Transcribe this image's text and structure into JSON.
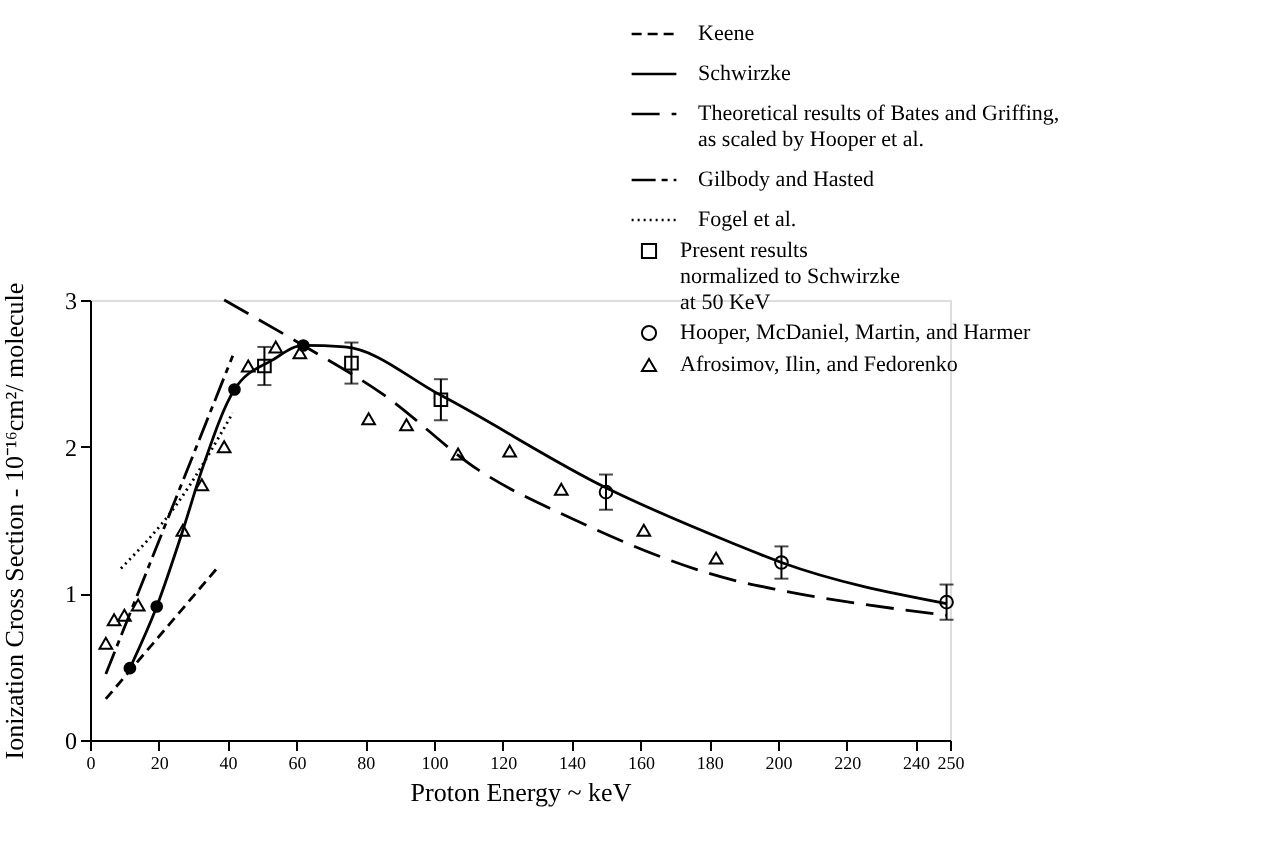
{
  "chart_data": {
    "type": "line",
    "xlabel": "Proton Energy ~ keV",
    "ylabel": "Ionization Cross Section - 10⁻¹⁶cm²/ molecule",
    "xlim": [
      0,
      250
    ],
    "xticks": [
      0,
      20,
      40,
      60,
      80,
      100,
      120,
      140,
      160,
      180,
      200,
      220,
      240,
      250
    ],
    "ylim": [
      0,
      3
    ],
    "yticks": [
      0,
      1,
      2,
      3
    ],
    "grid": false,
    "legend": "top right",
    "series": [
      {
        "type": "line",
        "name": "Keene",
        "color": "#000000",
        "line_style": "dashed",
        "x": [
          4.6,
          36.9
        ],
        "values": [
          0.28,
          1.17
        ]
      },
      {
        "type": "line",
        "name": "Schwirzke",
        "color": "#000000",
        "line_style": "solid",
        "x": [
          11.6,
          19.4,
          27,
          32.5,
          42,
          53,
          62,
          74,
          102,
          150,
          187,
          201,
          249
        ],
        "values": [
          0.49,
          0.91,
          1.43,
          1.84,
          2.39,
          2.59,
          2.69,
          2.68,
          2.35,
          1.72,
          1.34,
          1.21,
          0.93
        ]
      },
      {
        "type": "scatter",
        "name": "Present results\nnormalized to Schwirzke\nat 50 KeV",
        "color": "#000000",
        "marker": "square",
        "x": [
          50.7,
          76,
          102
        ],
        "values": [
          2.55,
          2.57,
          2.32
        ],
        "errors": [
          0.13,
          0.14,
          0.14
        ]
      },
      {
        "type": "scatter",
        "name": "Hooper, McDaniel, Martin, and Harmer",
        "color": "#000000",
        "marker": "circle",
        "x": [
          150,
          201,
          249
        ],
        "values": [
          1.69,
          1.21,
          0.94
        ],
        "errors": [
          0.12,
          0.11,
          0.12
        ]
      },
      {
        "type": "line",
        "name": "Theoretical results of Bates and Griffing,\nas scaled by Hooper et  al.",
        "color": "#000000",
        "line_style": "dashed",
        "x": [
          39,
          62,
          85,
          113,
          141,
          187,
          201,
          249
        ],
        "values": [
          3.0,
          2.69,
          2.36,
          1.84,
          1.5,
          1.09,
          1.02,
          0.85
        ]
      },
      {
        "type": "scatter",
        "name": "Afrosimov, Ilin, and Fedorenko",
        "color": "#000000",
        "marker": "triangle",
        "x": [
          4.6,
          7,
          10,
          14,
          27,
          32.5,
          39,
          46,
          54,
          61,
          81,
          92,
          107,
          122,
          137,
          161,
          182
        ],
        "values": [
          0.66,
          0.82,
          0.85,
          0.92,
          1.43,
          1.74,
          2.0,
          2.55,
          2.68,
          2.64,
          2.19,
          2.15,
          1.95,
          1.97,
          1.71,
          1.43,
          1.24
        ]
      },
      {
        "type": "line",
        "name": "Gilbody and Hasted",
        "color": "#000000",
        "line_style": "dashed",
        "x": [
          4.6,
          41.5
        ],
        "values": [
          0.45,
          2.62
        ]
      },
      {
        "type": "line",
        "name": "Fogel  et al.",
        "color": "#000000",
        "line_style": "dotted",
        "x": [
          9,
          25,
          41.5
        ],
        "values": [
          1.17,
          1.6,
          2.23
        ]
      },
      {
        "type": "scatter",
        "color": "#000000",
        "marker": "circle",
        "x": [
          11.6,
          19.4,
          42,
          62
        ],
        "values": [
          0.49,
          0.91,
          2.39,
          2.69
        ]
      }
    ]
  }
}
